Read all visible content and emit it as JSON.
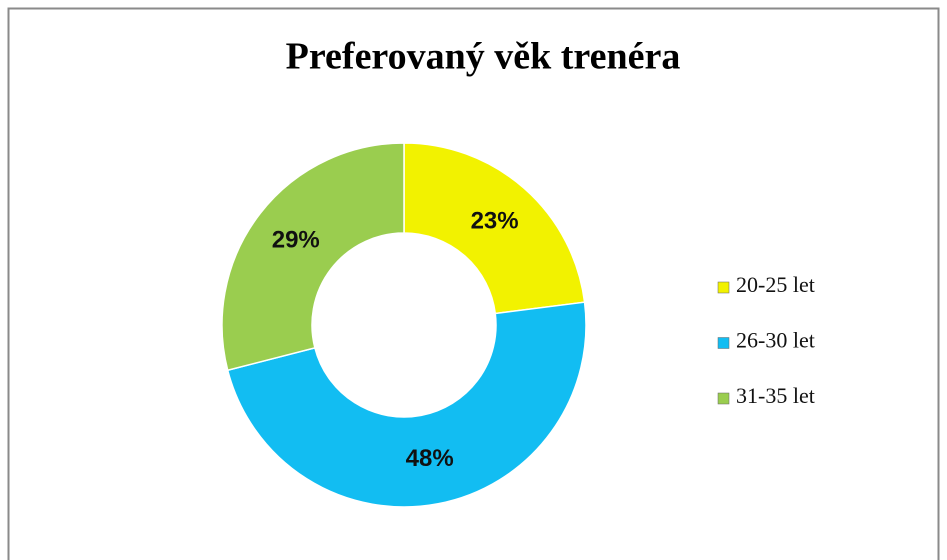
{
  "chart_data": {
    "type": "donut",
    "title": "Preferovaný věk trenéra",
    "categories": [
      "20-25 let",
      "26-30 let",
      "31-35 let"
    ],
    "values": [
      23,
      48,
      29
    ],
    "value_labels": [
      "23%",
      "48%",
      "29%"
    ],
    "colors": [
      "#f2f200",
      "#12bdf2",
      "#9acd4f"
    ],
    "legend": "right"
  }
}
